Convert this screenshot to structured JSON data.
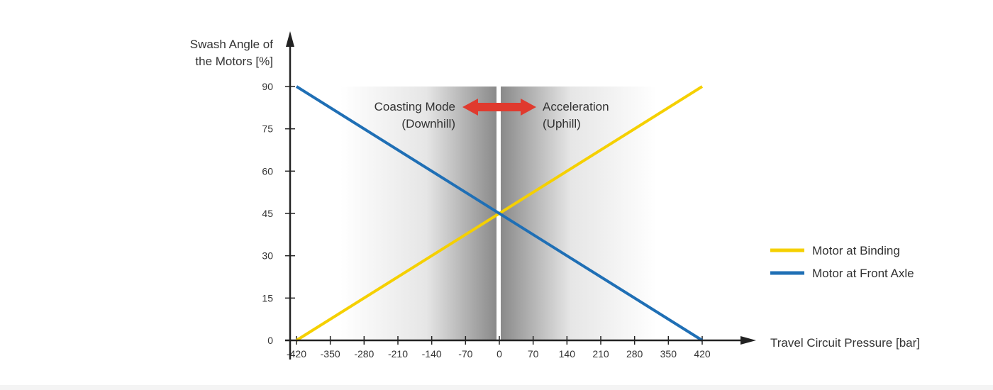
{
  "chart_data": {
    "type": "line",
    "ylabel_lines": [
      "Swash Angle of",
      "the Motors [%]"
    ],
    "xlabel": "Travel Circuit Pressure [bar]",
    "x_ticks": [
      -420,
      -350,
      -280,
      -210,
      -140,
      -70,
      0,
      70,
      140,
      210,
      280,
      350,
      420
    ],
    "y_ticks": [
      0,
      15,
      30,
      45,
      60,
      75,
      90
    ],
    "xlim": [
      -420,
      420
    ],
    "ylim": [
      0,
      90
    ],
    "series": [
      {
        "name": "Motor at Binding",
        "color": "#f5d000",
        "x": [
          -420,
          420
        ],
        "y": [
          0,
          90
        ]
      },
      {
        "name": "Motor at Front Axle",
        "color": "#1f6fb5",
        "x": [
          -420,
          420
        ],
        "y": [
          90,
          0
        ]
      }
    ],
    "annotations": {
      "left": {
        "line1": "Coasting Mode",
        "line2": "(Downhill)"
      },
      "right": {
        "line1": "Acceleration",
        "line2": "(Uphill)"
      },
      "arrow_color": "#e03a2e"
    },
    "legend_position": "right"
  }
}
